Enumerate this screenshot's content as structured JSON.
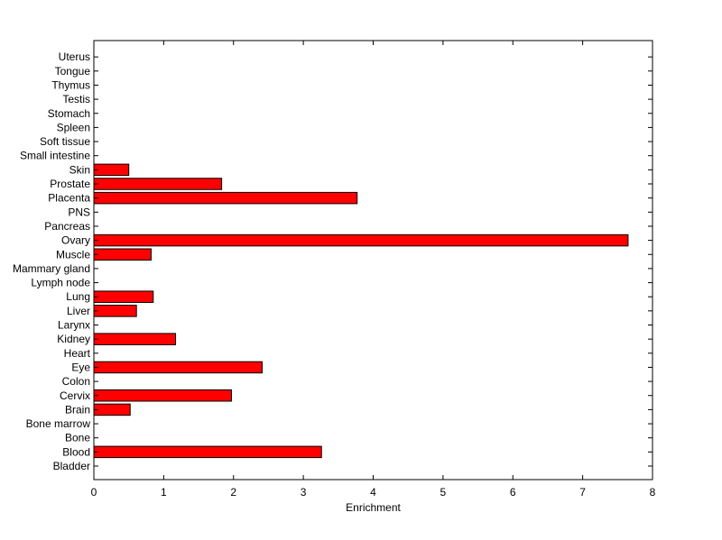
{
  "chart_data": {
    "type": "bar",
    "orientation": "horizontal",
    "title": "",
    "xlabel": "Enrichment",
    "ylabel": "",
    "xlim": [
      0,
      8
    ],
    "xticks": [
      0,
      1,
      2,
      3,
      4,
      5,
      6,
      7,
      8
    ],
    "grid": false,
    "bar_color": "#ff0000",
    "categories": [
      "Bladder",
      "Blood",
      "Bone",
      "Bone marrow",
      "Brain",
      "Cervix",
      "Colon",
      "Eye",
      "Heart",
      "Kidney",
      "Larynx",
      "Liver",
      "Lung",
      "Lymph node",
      "Mammary gland",
      "Muscle",
      "Ovary",
      "Pancreas",
      "PNS",
      "Placenta",
      "Prostate",
      "Skin",
      "Small intestine",
      "Soft tissue",
      "Spleen",
      "Stomach",
      "Testis",
      "Thymus",
      "Tongue",
      "Uterus"
    ],
    "values": [
      0,
      3.26,
      0,
      0,
      0.52,
      1.97,
      0,
      2.41,
      0,
      1.17,
      0,
      0.61,
      0.85,
      0,
      0,
      0.82,
      7.65,
      0,
      0,
      3.77,
      1.83,
      0.5,
      0,
      0,
      0,
      0,
      0,
      0,
      0,
      0
    ]
  }
}
